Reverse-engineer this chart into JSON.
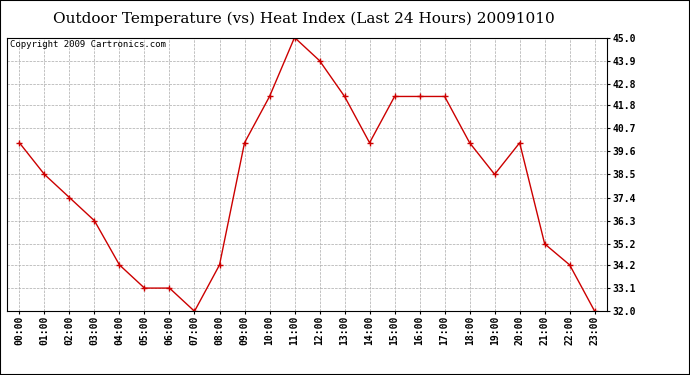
{
  "title": "Outdoor Temperature (vs) Heat Index (Last 24 Hours) 20091010",
  "copyright_text": "Copyright 2009 Cartronics.com",
  "x_labels": [
    "00:00",
    "01:00",
    "02:00",
    "03:00",
    "04:00",
    "05:00",
    "06:00",
    "07:00",
    "08:00",
    "09:00",
    "10:00",
    "11:00",
    "12:00",
    "13:00",
    "14:00",
    "15:00",
    "16:00",
    "17:00",
    "18:00",
    "19:00",
    "20:00",
    "21:00",
    "22:00",
    "23:00"
  ],
  "y_values": [
    40.0,
    38.5,
    37.4,
    36.3,
    34.2,
    33.1,
    33.1,
    32.0,
    34.2,
    40.0,
    42.2,
    45.0,
    43.9,
    42.2,
    40.0,
    42.2,
    42.2,
    42.2,
    40.0,
    38.5,
    40.0,
    35.2,
    34.2,
    32.0
  ],
  "line_color": "#CC0000",
  "marker": "+",
  "marker_size": 5,
  "marker_color": "#CC0000",
  "bg_color": "#ffffff",
  "plot_bg_color": "#ffffff",
  "grid_color": "#aaaaaa",
  "ylim_min": 32.0,
  "ylim_max": 45.0,
  "y_ticks": [
    32.0,
    33.1,
    34.2,
    35.2,
    36.3,
    37.4,
    38.5,
    39.6,
    40.7,
    41.8,
    42.8,
    43.9,
    45.0
  ],
  "title_fontsize": 11,
  "tick_fontsize": 7,
  "copyright_fontsize": 6.5
}
